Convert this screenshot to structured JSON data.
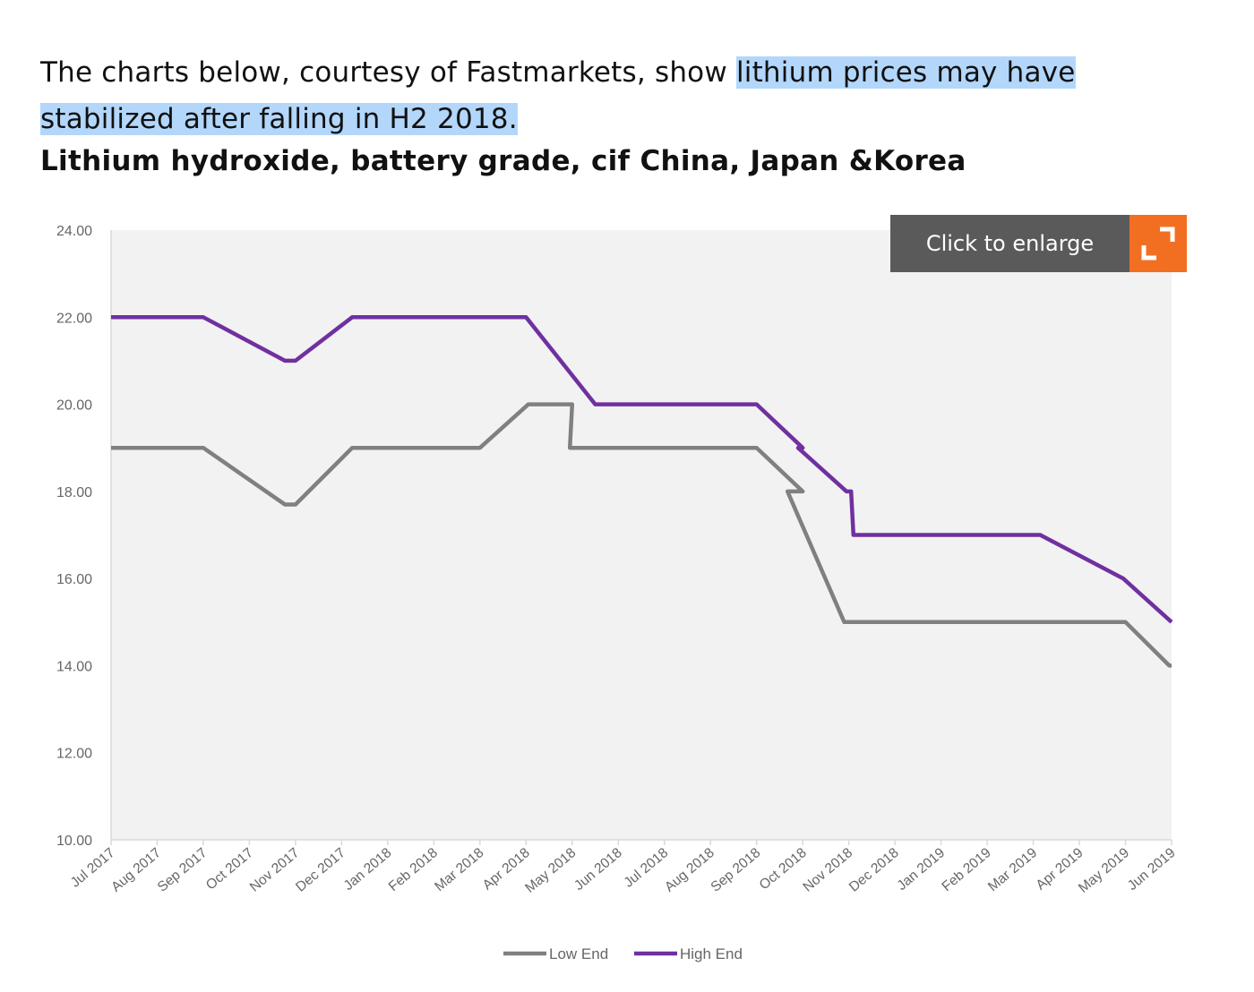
{
  "intro": {
    "plain": "The charts below, courtesy of Fastmarkets, show ",
    "highlight": "lithium prices may have stabilized after falling in H2 2018."
  },
  "enlarge": {
    "label": "Click to enlarge",
    "icon": "expand-icon"
  },
  "colors": {
    "low_end": "#808080",
    "high_end": "#7030a0",
    "plot_bg": "#f2f2f2",
    "enlarge_accent": "#f26f21"
  },
  "chart_data": {
    "type": "line",
    "title": "Lithium hydroxide, battery grade, cif China, Japan &Korea",
    "xlabel": "",
    "ylabel": "",
    "ylim": [
      10,
      24
    ],
    "yticks": [
      "24.00",
      "22.00",
      "20.00",
      "18.00",
      "16.00",
      "14.00",
      "12.00",
      "10.00"
    ],
    "categories": [
      "Jul 2017",
      "Aug 2017",
      "Sep 2017",
      "Oct 2017",
      "Nov 2017",
      "Dec 2017",
      "Jan 2018",
      "Feb 2018",
      "Mar 2018",
      "Apr 2018",
      "May 2018",
      "Jun 2018",
      "Jul 2018",
      "Aug 2018",
      "Sep 2018",
      "Oct 2018",
      "Nov 2018",
      "Dec 2018",
      "Jan 2019",
      "Feb 2019",
      "Mar 2019",
      "Apr 2019",
      "May 2019",
      "Jun 2019"
    ],
    "grid": false,
    "legend_position": "bottom",
    "series": [
      {
        "name": "Low End",
        "points": [
          [
            "Jul 2017",
            19
          ],
          [
            "Sep 2017",
            19
          ],
          [
            "Oct 2017",
            17.7
          ],
          [
            "Nov 2017",
            17.7
          ],
          [
            "Dec 2017",
            19
          ],
          [
            "Mar 2018",
            19
          ],
          [
            "Apr 2018",
            20
          ],
          [
            "May 2018",
            20
          ],
          [
            "May 2018",
            19
          ],
          [
            "Sep 2018",
            19
          ],
          [
            "Oct 2018",
            18
          ],
          [
            "Oct 2018",
            18
          ],
          [
            "Nov 2018",
            15
          ],
          [
            "Mar 2019",
            15
          ],
          [
            "May 2019",
            15
          ],
          [
            "Jun 2019",
            14
          ],
          [
            "Jun 2019",
            14
          ]
        ]
      },
      {
        "name": "High End",
        "points": [
          [
            "Jul 2017",
            22
          ],
          [
            "Sep 2017",
            22
          ],
          [
            "Oct 2017",
            21
          ],
          [
            "Nov 2017",
            21
          ],
          [
            "Dec 2017",
            22
          ],
          [
            "Apr 2018",
            22
          ],
          [
            "May 2018",
            20
          ],
          [
            "Sep 2018",
            20
          ],
          [
            "Oct 2018",
            19
          ],
          [
            "Oct 2018",
            19
          ],
          [
            "Nov 2018",
            18
          ],
          [
            "Nov 2018",
            18
          ],
          [
            "Nov 2018",
            17
          ],
          [
            "Mar 2019",
            17
          ],
          [
            "Apr 2019",
            16
          ],
          [
            "May 2019",
            16
          ],
          [
            "Jun 2019",
            15
          ],
          [
            "Jun 2019",
            15
          ]
        ]
      }
    ]
  }
}
